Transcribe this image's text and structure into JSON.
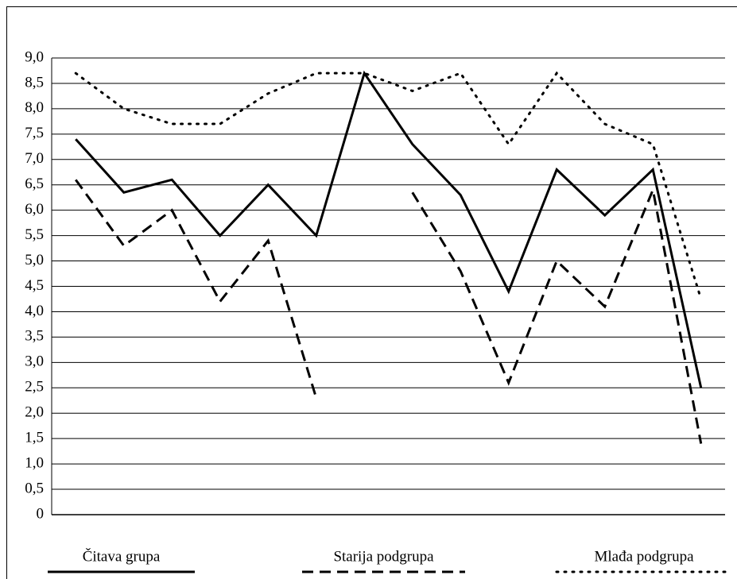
{
  "chart_data": {
    "type": "line",
    "categories": [
      null,
      null,
      null,
      null,
      null,
      null,
      null,
      null,
      null,
      null,
      null,
      null,
      null,
      null
    ],
    "series": [
      {
        "name": "Čitava grupa",
        "color": "#000000",
        "dash": "solid",
        "values": [
          7.4,
          6.35,
          6.6,
          5.5,
          6.5,
          5.5,
          8.7,
          7.3,
          6.3,
          4.4,
          6.8,
          5.9,
          6.8,
          2.5
        ]
      },
      {
        "name": "Starija podgrupa",
        "color": "#000000",
        "dash": "dashed",
        "values": [
          6.6,
          5.3,
          6.0,
          4.2,
          5.4,
          2.3,
          null,
          6.35,
          4.8,
          2.6,
          5.0,
          4.1,
          6.4,
          1.4
        ]
      },
      {
        "name": "Mlađa podgrupa",
        "color": "#000000",
        "dash": "dotted",
        "values": [
          8.7,
          8.0,
          7.7,
          7.7,
          8.3,
          8.7,
          8.7,
          8.35,
          8.7,
          7.3,
          8.7,
          7.7,
          7.3,
          4.25
        ]
      }
    ],
    "ylim": [
      0,
      9
    ],
    "yticks": [
      0,
      {
        "value": 0.5,
        "label": "0,5"
      },
      {
        "value": 1,
        "label": "1,0"
      },
      {
        "value": 1.5,
        "label": "1,5"
      },
      {
        "value": 2,
        "label": "2,0"
      },
      {
        "value": 2.5,
        "label": "2,5"
      },
      {
        "value": 3,
        "label": "3,0"
      },
      {
        "value": 3.5,
        "label": "3,5"
      },
      {
        "value": 4,
        "label": "4,0"
      },
      {
        "value": 4.5,
        "label": "4,5"
      },
      {
        "value": 5,
        "label": "5,0"
      },
      {
        "value": 5.5,
        "label": "5,5"
      },
      {
        "value": 6,
        "label": "6,0"
      },
      {
        "value": 6.5,
        "label": "6,5"
      },
      {
        "value": 7,
        "label": "7,0"
      },
      {
        "value": 7.5,
        "label": "7,5"
      },
      {
        "value": 8,
        "label": "8,0"
      },
      {
        "value": 8.5,
        "label": "8,5"
      },
      {
        "value": 9,
        "label": "9,0"
      }
    ],
    "grid": true,
    "legend": "bottom"
  }
}
